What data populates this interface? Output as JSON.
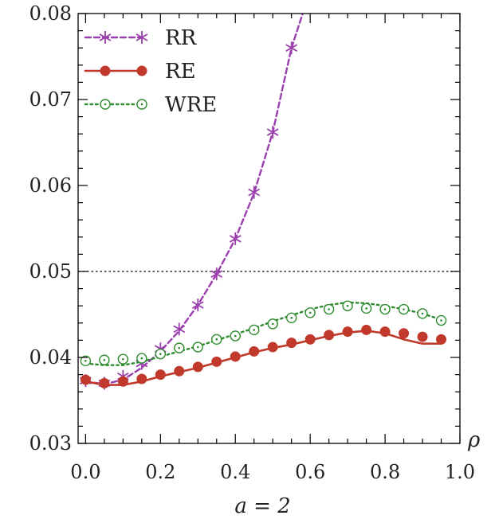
{
  "chart_data": {
    "type": "line",
    "title": "",
    "xlabel": "a = 2",
    "xaxis_symbol": "ρ",
    "ylabel": "",
    "xlim": [
      -0.02,
      1.0
    ],
    "ylim": [
      0.03,
      0.08
    ],
    "xticks": [
      0.0,
      0.2,
      0.4,
      0.6,
      0.8,
      1.0
    ],
    "xtick_labels": [
      "0.0",
      "0.2",
      "0.4",
      "0.6",
      "0.8",
      "1.0"
    ],
    "yticks": [
      0.03,
      0.04,
      0.05,
      0.06,
      0.07,
      0.08
    ],
    "ytick_labels": [
      "0.03",
      "0.04",
      "0.05",
      "0.06",
      "0.07",
      "0.08"
    ],
    "reference_line": {
      "y": 0.05,
      "style": "dotted",
      "color": "#000000"
    },
    "grid": false,
    "legend_position": "top-left",
    "series": [
      {
        "name": "RR",
        "color": "#9b3fae",
        "line_style": "dashed",
        "marker": "star",
        "curve_x": [
          0.0,
          0.05,
          0.1,
          0.15,
          0.2,
          0.25,
          0.3,
          0.35,
          0.4,
          0.45,
          0.5,
          0.55,
          0.58
        ],
        "curve_y": [
          0.0372,
          0.0369,
          0.0374,
          0.0388,
          0.0407,
          0.0431,
          0.0461,
          0.0497,
          0.0538,
          0.0591,
          0.0662,
          0.076,
          0.08
        ],
        "points_x": [
          0.0,
          0.05,
          0.1,
          0.15,
          0.2,
          0.25,
          0.3,
          0.35,
          0.4,
          0.45,
          0.5,
          0.55
        ],
        "points_y": [
          0.0373,
          0.037,
          0.0378,
          0.0393,
          0.041,
          0.0433,
          0.0461,
          0.0497,
          0.0538,
          0.0592,
          0.0662,
          0.076
        ]
      },
      {
        "name": "RE",
        "color": "#c0392b",
        "line_style": "solid",
        "marker": "filled-circle",
        "curve_x": [
          0.0,
          0.05,
          0.1,
          0.15,
          0.2,
          0.25,
          0.3,
          0.35,
          0.4,
          0.45,
          0.5,
          0.55,
          0.6,
          0.65,
          0.7,
          0.75,
          0.8,
          0.85,
          0.9,
          0.95
        ],
        "curve_y": [
          0.0372,
          0.0368,
          0.0368,
          0.0372,
          0.0378,
          0.0383,
          0.0388,
          0.0394,
          0.04,
          0.0406,
          0.0411,
          0.0415,
          0.042,
          0.0425,
          0.0429,
          0.0431,
          0.0428,
          0.0421,
          0.0416,
          0.0416
        ],
        "points_x": [
          0.0,
          0.05,
          0.1,
          0.15,
          0.2,
          0.25,
          0.3,
          0.35,
          0.4,
          0.45,
          0.5,
          0.55,
          0.6,
          0.65,
          0.7,
          0.75,
          0.8,
          0.85,
          0.9,
          0.95
        ],
        "points_y": [
          0.0374,
          0.037,
          0.0372,
          0.0375,
          0.038,
          0.0384,
          0.0389,
          0.0395,
          0.0401,
          0.0407,
          0.0412,
          0.0417,
          0.0421,
          0.0426,
          0.043,
          0.0432,
          0.043,
          0.0428,
          0.0424,
          0.0421
        ]
      },
      {
        "name": "WRE",
        "color": "#2e8b2e",
        "line_style": "dotted",
        "marker": "open-circle",
        "curve_x": [
          0.0,
          0.05,
          0.1,
          0.15,
          0.2,
          0.25,
          0.3,
          0.35,
          0.4,
          0.45,
          0.5,
          0.55,
          0.6,
          0.65,
          0.7,
          0.75,
          0.8,
          0.85,
          0.9,
          0.95
        ],
        "curve_y": [
          0.0393,
          0.0391,
          0.0391,
          0.0395,
          0.0401,
          0.0407,
          0.0413,
          0.042,
          0.0427,
          0.0434,
          0.0442,
          0.0449,
          0.0456,
          0.0461,
          0.0464,
          0.0463,
          0.046,
          0.0456,
          0.0451,
          0.0444
        ],
        "points_x": [
          0.0,
          0.05,
          0.1,
          0.15,
          0.2,
          0.25,
          0.3,
          0.35,
          0.4,
          0.45,
          0.5,
          0.55,
          0.6,
          0.65,
          0.7,
          0.75,
          0.8,
          0.85,
          0.9,
          0.95
        ],
        "points_y": [
          0.0396,
          0.0397,
          0.0398,
          0.0399,
          0.0404,
          0.0411,
          0.0412,
          0.0421,
          0.0425,
          0.0432,
          0.0439,
          0.0446,
          0.0452,
          0.0456,
          0.046,
          0.0457,
          0.0456,
          0.0456,
          0.0451,
          0.0443
        ]
      }
    ]
  }
}
